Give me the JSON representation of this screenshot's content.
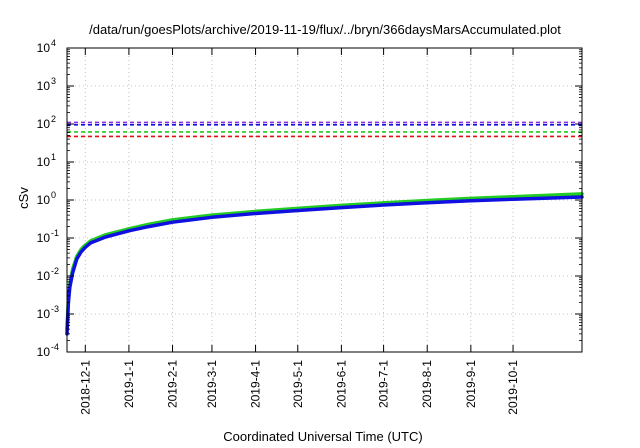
{
  "chart_data": {
    "type": "line",
    "title": "/data/run/goesPlots/archive/2019-11-19/flux/../bryn/366daysMarsAccumulated.plot",
    "xlabel": "Coordinated Universal Time (UTC)",
    "ylabel": "cSv",
    "log_y": true,
    "grid": true,
    "ylim": [
      0.0001,
      10000
    ],
    "xlim": [
      "2018-11-18",
      "2019-11-19"
    ],
    "y_ticks": [
      {
        "base": "10",
        "exp": "-4",
        "value": 0.0001
      },
      {
        "base": "10",
        "exp": "-3",
        "value": 0.001
      },
      {
        "base": "10",
        "exp": "-2",
        "value": 0.01
      },
      {
        "base": "10",
        "exp": "-1",
        "value": 0.1
      },
      {
        "base": "10",
        "exp": "0",
        "value": 1
      },
      {
        "base": "10",
        "exp": "1",
        "value": 10
      },
      {
        "base": "10",
        "exp": "2",
        "value": 100
      },
      {
        "base": "10",
        "exp": "3",
        "value": 1000
      },
      {
        "base": "10",
        "exp": "4",
        "value": 10000
      }
    ],
    "x_ticks": [
      {
        "label": "2018-12-1",
        "date": "2018-12-01"
      },
      {
        "label": "2019-1-1",
        "date": "2019-01-01"
      },
      {
        "label": "2019-2-1",
        "date": "2019-02-01"
      },
      {
        "label": "2019-3-1",
        "date": "2019-03-01"
      },
      {
        "label": "2019-4-1",
        "date": "2019-04-01"
      },
      {
        "label": "2019-5-1",
        "date": "2019-05-01"
      },
      {
        "label": "2019-6-1",
        "date": "2019-06-01"
      },
      {
        "label": "2019-7-1",
        "date": "2019-07-01"
      },
      {
        "label": "2019-8-1",
        "date": "2019-08-01"
      },
      {
        "label": "2019-9-1",
        "date": "2019-09-01"
      },
      {
        "label": "2019-10-1",
        "date": "2019-10-01"
      }
    ],
    "reference_lines": [
      {
        "value": 110,
        "color": "#8a2be2",
        "style": "dashed"
      },
      {
        "value": 95,
        "color": "#1010e0",
        "style": "dashed"
      },
      {
        "value": 62,
        "color": "#22cc22",
        "style": "dashed"
      },
      {
        "value": 47,
        "color": "#e01010",
        "style": "dashed"
      }
    ],
    "series": [
      {
        "color": "#22cc22",
        "points": [
          [
            "2018-11-18",
            0.0004
          ],
          [
            "2018-11-19",
            0.0025
          ],
          [
            "2018-11-20",
            0.006
          ],
          [
            "2018-11-22",
            0.015
          ],
          [
            "2018-11-25",
            0.033
          ],
          [
            "2018-11-28",
            0.05
          ],
          [
            "2018-12-01",
            0.065
          ],
          [
            "2018-12-05",
            0.085
          ],
          [
            "2018-12-15",
            0.12
          ],
          [
            "2019-01-01",
            0.175
          ],
          [
            "2019-01-15",
            0.23
          ],
          [
            "2019-02-01",
            0.3
          ],
          [
            "2019-03-01",
            0.4
          ],
          [
            "2019-04-01",
            0.5
          ],
          [
            "2019-05-01",
            0.6
          ],
          [
            "2019-06-01",
            0.72
          ],
          [
            "2019-07-01",
            0.84
          ],
          [
            "2019-08-01",
            0.97
          ],
          [
            "2019-09-01",
            1.1
          ],
          [
            "2019-10-01",
            1.22
          ],
          [
            "2019-11-19",
            1.45
          ]
        ]
      },
      {
        "color": "#1010e0",
        "points": [
          [
            "2018-11-18",
            0.0003
          ],
          [
            "2018-11-19",
            0.002
          ],
          [
            "2018-11-20",
            0.005
          ],
          [
            "2018-11-22",
            0.012
          ],
          [
            "2018-11-25",
            0.028
          ],
          [
            "2018-11-28",
            0.043
          ],
          [
            "2018-12-01",
            0.057
          ],
          [
            "2018-12-05",
            0.075
          ],
          [
            "2018-12-15",
            0.105
          ],
          [
            "2019-01-01",
            0.155
          ],
          [
            "2019-01-15",
            0.2
          ],
          [
            "2019-02-01",
            0.26
          ],
          [
            "2019-03-01",
            0.35
          ],
          [
            "2019-04-01",
            0.44
          ],
          [
            "2019-05-01",
            0.53
          ],
          [
            "2019-06-01",
            0.63
          ],
          [
            "2019-07-01",
            0.74
          ],
          [
            "2019-08-01",
            0.85
          ],
          [
            "2019-09-01",
            0.96
          ],
          [
            "2019-10-01",
            1.05
          ],
          [
            "2019-11-19",
            1.2
          ]
        ]
      }
    ]
  }
}
